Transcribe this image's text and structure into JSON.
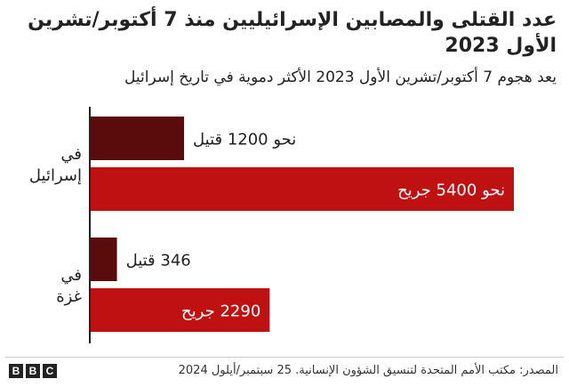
{
  "title": "عدد القتلى والمصابين الإسرائيليين منذ 7 أكتوبر/تشرين الأول 2023",
  "subtitle": "يعد هجوم 7 أكتوبر/تشرين الأول 2023 الأكثر دموية في تاريخ إسرائيل",
  "source": "المصدر: مكتب الأمم المتحدة لتنسيق الشؤون الإنسانية. 25 سبتمبر/أيلول 2024",
  "brand": {
    "logo_letters": [
      "B",
      "B",
      "C"
    ]
  },
  "chart_data": {
    "type": "bar",
    "orientation": "horizontal",
    "title": "عدد القتلى والمصابين الإسرائيليين منذ 7 أكتوبر/تشرين الأول 2023",
    "subtitle": "يعد هجوم 7 أكتوبر/تشرين الأول 2023 الأكثر دموية في تاريخ إسرائيل",
    "categories": [
      "في إسرائيل",
      "في غزة"
    ],
    "series": [
      {
        "name": "قتيل",
        "color": "#5a0c0c",
        "values": [
          1200,
          346
        ],
        "labels": [
          "نحو 1200 قتيل",
          "346 قتيل"
        ]
      },
      {
        "name": "جريح",
        "color": "#bf1111",
        "values": [
          5400,
          2290
        ],
        "labels": [
          "نحو 5400 جريح",
          "2290 جريح"
        ]
      }
    ],
    "xlim": [
      0,
      5400
    ],
    "grid": false,
    "legend": "none"
  }
}
